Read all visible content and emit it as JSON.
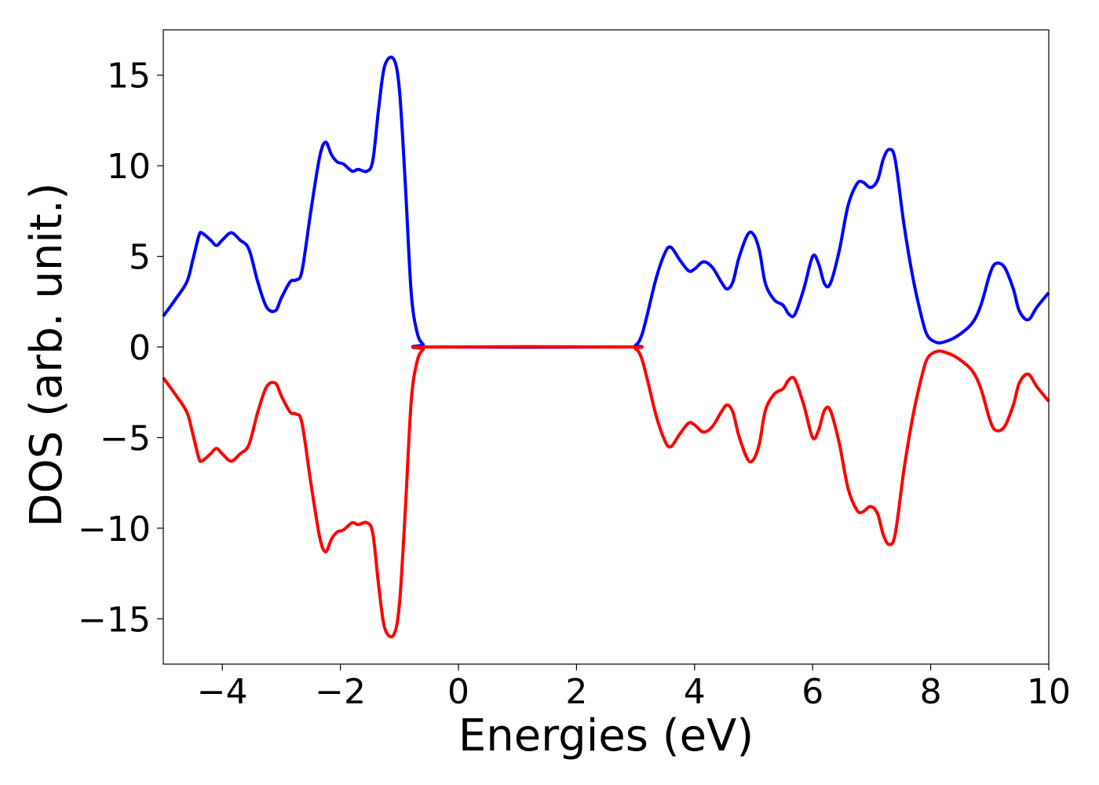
{
  "chart_data": {
    "type": "line",
    "title": "",
    "xlabel": "Energies (eV)",
    "ylabel": "DOS (arb. unit.)",
    "xlim": [
      -5,
      10
    ],
    "ylim": [
      -17.5,
      17.5
    ],
    "x_ticks": [
      -4,
      -2,
      0,
      2,
      4,
      6,
      8,
      10
    ],
    "x_tick_labels": [
      "−4",
      "−2",
      "0",
      "2",
      "4",
      "6",
      "8",
      "10"
    ],
    "y_ticks": [
      15,
      10,
      5,
      0,
      -5,
      -10,
      -15
    ],
    "y_tick_labels": [
      "15",
      "10",
      "5",
      "0",
      "−5",
      "−10",
      "−15"
    ],
    "grid": false,
    "legend": "none",
    "series": [
      {
        "color": "#0000ff",
        "points": [
          [
            -5.0,
            1.7
          ],
          [
            -4.8,
            2.6
          ],
          [
            -4.6,
            3.6
          ],
          [
            -4.5,
            4.8
          ],
          [
            -4.4,
            6.1
          ],
          [
            -4.35,
            6.3
          ],
          [
            -4.2,
            5.9
          ],
          [
            -4.1,
            5.6
          ],
          [
            -4.0,
            5.9
          ],
          [
            -3.85,
            6.3
          ],
          [
            -3.7,
            5.9
          ],
          [
            -3.55,
            5.4
          ],
          [
            -3.4,
            3.6
          ],
          [
            -3.25,
            2.2
          ],
          [
            -3.1,
            2.0
          ],
          [
            -3.0,
            2.7
          ],
          [
            -2.85,
            3.6
          ],
          [
            -2.75,
            3.7
          ],
          [
            -2.65,
            4.2
          ],
          [
            -2.5,
            7.5
          ],
          [
            -2.35,
            10.5
          ],
          [
            -2.25,
            11.3
          ],
          [
            -2.15,
            10.6
          ],
          [
            -2.05,
            10.2
          ],
          [
            -1.95,
            10.1
          ],
          [
            -1.8,
            9.7
          ],
          [
            -1.7,
            9.8
          ],
          [
            -1.55,
            9.7
          ],
          [
            -1.45,
            10.3
          ],
          [
            -1.35,
            13.2
          ],
          [
            -1.25,
            15.5
          ],
          [
            -1.1,
            15.9
          ],
          [
            -1.0,
            14.2
          ],
          [
            -0.9,
            9.0
          ],
          [
            -0.8,
            3.0
          ],
          [
            -0.7,
            0.8
          ],
          [
            -0.6,
            0.15
          ],
          [
            -0.5,
            0.0
          ],
          [
            2.8,
            0.0
          ],
          [
            3.0,
            0.1
          ],
          [
            3.1,
            0.6
          ],
          [
            3.2,
            1.8
          ],
          [
            3.35,
            3.8
          ],
          [
            3.5,
            5.2
          ],
          [
            3.6,
            5.5
          ],
          [
            3.75,
            4.8
          ],
          [
            3.9,
            4.2
          ],
          [
            4.0,
            4.3
          ],
          [
            4.15,
            4.7
          ],
          [
            4.3,
            4.4
          ],
          [
            4.45,
            3.6
          ],
          [
            4.55,
            3.2
          ],
          [
            4.65,
            3.6
          ],
          [
            4.75,
            4.9
          ],
          [
            4.9,
            6.2
          ],
          [
            5.0,
            6.2
          ],
          [
            5.1,
            5.3
          ],
          [
            5.2,
            3.5
          ],
          [
            5.35,
            2.6
          ],
          [
            5.5,
            2.3
          ],
          [
            5.6,
            1.8
          ],
          [
            5.7,
            1.8
          ],
          [
            5.85,
            3.2
          ],
          [
            6.0,
            5.0
          ],
          [
            6.1,
            4.6
          ],
          [
            6.2,
            3.5
          ],
          [
            6.3,
            3.5
          ],
          [
            6.45,
            5.3
          ],
          [
            6.6,
            7.8
          ],
          [
            6.75,
            9.0
          ],
          [
            6.85,
            9.1
          ],
          [
            6.98,
            8.8
          ],
          [
            7.1,
            9.2
          ],
          [
            7.2,
            10.4
          ],
          [
            7.3,
            10.9
          ],
          [
            7.4,
            10.3
          ],
          [
            7.55,
            6.7
          ],
          [
            7.7,
            3.8
          ],
          [
            7.85,
            1.6
          ],
          [
            7.95,
            0.6
          ],
          [
            8.1,
            0.25
          ],
          [
            8.25,
            0.3
          ],
          [
            8.45,
            0.6
          ],
          [
            8.7,
            1.3
          ],
          [
            8.85,
            2.3
          ],
          [
            9.0,
            4.0
          ],
          [
            9.1,
            4.6
          ],
          [
            9.25,
            4.4
          ],
          [
            9.4,
            3.2
          ],
          [
            9.5,
            2.0
          ],
          [
            9.65,
            1.5
          ],
          [
            9.8,
            2.2
          ],
          [
            10.0,
            3.0
          ]
        ]
      },
      {
        "color": "#ff0000",
        "points": [
          [
            -5.0,
            -1.7
          ],
          [
            -4.8,
            -2.6
          ],
          [
            -4.6,
            -3.6
          ],
          [
            -4.5,
            -4.8
          ],
          [
            -4.4,
            -6.1
          ],
          [
            -4.35,
            -6.3
          ],
          [
            -4.2,
            -5.9
          ],
          [
            -4.1,
            -5.6
          ],
          [
            -4.0,
            -5.9
          ],
          [
            -3.85,
            -6.3
          ],
          [
            -3.7,
            -5.9
          ],
          [
            -3.55,
            -5.4
          ],
          [
            -3.4,
            -3.6
          ],
          [
            -3.25,
            -2.2
          ],
          [
            -3.1,
            -2.0
          ],
          [
            -3.0,
            -2.7
          ],
          [
            -2.85,
            -3.6
          ],
          [
            -2.75,
            -3.7
          ],
          [
            -2.65,
            -4.2
          ],
          [
            -2.5,
            -7.5
          ],
          [
            -2.35,
            -10.5
          ],
          [
            -2.25,
            -11.3
          ],
          [
            -2.15,
            -10.6
          ],
          [
            -2.05,
            -10.2
          ],
          [
            -1.95,
            -10.1
          ],
          [
            -1.8,
            -9.7
          ],
          [
            -1.7,
            -9.8
          ],
          [
            -1.55,
            -9.7
          ],
          [
            -1.45,
            -10.3
          ],
          [
            -1.35,
            -13.2
          ],
          [
            -1.25,
            -15.5
          ],
          [
            -1.1,
            -15.9
          ],
          [
            -1.0,
            -14.2
          ],
          [
            -0.9,
            -9.0
          ],
          [
            -0.8,
            -3.0
          ],
          [
            -0.7,
            -0.8
          ],
          [
            -0.6,
            -0.15
          ],
          [
            -0.5,
            0.0
          ],
          [
            2.8,
            0.0
          ],
          [
            3.0,
            -0.1
          ],
          [
            3.1,
            -0.6
          ],
          [
            3.2,
            -1.8
          ],
          [
            3.35,
            -3.8
          ],
          [
            3.5,
            -5.2
          ],
          [
            3.6,
            -5.5
          ],
          [
            3.75,
            -4.8
          ],
          [
            3.9,
            -4.2
          ],
          [
            4.0,
            -4.3
          ],
          [
            4.15,
            -4.7
          ],
          [
            4.3,
            -4.4
          ],
          [
            4.45,
            -3.6
          ],
          [
            4.55,
            -3.2
          ],
          [
            4.65,
            -3.6
          ],
          [
            4.75,
            -4.9
          ],
          [
            4.9,
            -6.2
          ],
          [
            5.0,
            -6.2
          ],
          [
            5.1,
            -5.3
          ],
          [
            5.2,
            -3.5
          ],
          [
            5.35,
            -2.6
          ],
          [
            5.5,
            -2.3
          ],
          [
            5.6,
            -1.8
          ],
          [
            5.7,
            -1.8
          ],
          [
            5.85,
            -3.2
          ],
          [
            6.0,
            -5.0
          ],
          [
            6.1,
            -4.6
          ],
          [
            6.2,
            -3.5
          ],
          [
            6.3,
            -3.5
          ],
          [
            6.45,
            -5.3
          ],
          [
            6.6,
            -7.8
          ],
          [
            6.75,
            -9.0
          ],
          [
            6.85,
            -9.1
          ],
          [
            6.98,
            -8.8
          ],
          [
            7.1,
            -9.2
          ],
          [
            7.2,
            -10.4
          ],
          [
            7.3,
            -10.9
          ],
          [
            7.4,
            -10.3
          ],
          [
            7.55,
            -6.7
          ],
          [
            7.7,
            -3.8
          ],
          [
            7.85,
            -1.6
          ],
          [
            7.95,
            -0.6
          ],
          [
            8.1,
            -0.25
          ],
          [
            8.25,
            -0.3
          ],
          [
            8.45,
            -0.6
          ],
          [
            8.7,
            -1.3
          ],
          [
            8.85,
            -2.3
          ],
          [
            9.0,
            -4.0
          ],
          [
            9.1,
            -4.6
          ],
          [
            9.25,
            -4.4
          ],
          [
            9.4,
            -3.2
          ],
          [
            9.5,
            -2.0
          ],
          [
            9.65,
            -1.5
          ],
          [
            9.8,
            -2.2
          ],
          [
            10.0,
            -3.0
          ]
        ]
      }
    ]
  }
}
